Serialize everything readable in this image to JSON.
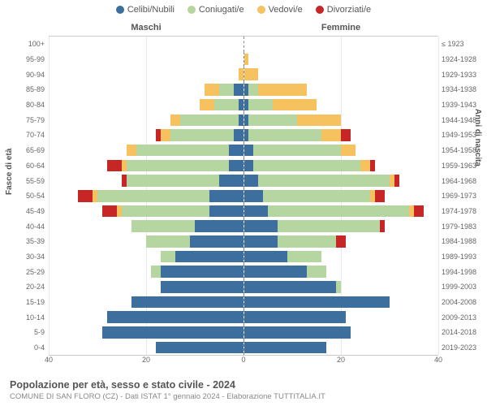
{
  "chart": {
    "type": "population-pyramid",
    "xmax": 40,
    "xticks": [
      40,
      20,
      0,
      20,
      40
    ],
    "background_color": "#ffffff",
    "grid_color": "#e8e8e8",
    "centerline_color": "#888888",
    "border_color": "#cccccc",
    "bar_height_ratio": 0.78,
    "label_fontsize": 9,
    "axis_fontsize": 10,
    "font_family": "Arial",
    "categories": [
      {
        "key": "celibi",
        "label": "Celibi/Nubili",
        "color": "#3c6e9e"
      },
      {
        "key": "coniugati",
        "label": "Coniugati/e",
        "color": "#b5d6a0"
      },
      {
        "key": "vedovi",
        "label": "Vedovi/e",
        "color": "#f6c260"
      },
      {
        "key": "divorziati",
        "label": "Divorziati/e",
        "color": "#c62626"
      }
    ],
    "headers": {
      "male": "Maschi",
      "female": "Femmine"
    },
    "y_axis_left_label": "Fasce di età",
    "y_axis_right_label": "Anni di nascita",
    "rows": [
      {
        "age": "100+",
        "year": "≤ 1923",
        "m": {
          "celibi": 0,
          "coniugati": 0,
          "vedovi": 0,
          "divorziati": 0
        },
        "f": {
          "celibi": 0,
          "coniugati": 0,
          "vedovi": 0,
          "divorziati": 0
        }
      },
      {
        "age": "95-99",
        "year": "1924-1928",
        "m": {
          "celibi": 0,
          "coniugati": 0,
          "vedovi": 0,
          "divorziati": 0
        },
        "f": {
          "celibi": 0,
          "coniugati": 0,
          "vedovi": 1,
          "divorziati": 0
        }
      },
      {
        "age": "90-94",
        "year": "1929-1933",
        "m": {
          "celibi": 0,
          "coniugati": 0,
          "vedovi": 1,
          "divorziati": 0
        },
        "f": {
          "celibi": 0,
          "coniugati": 0,
          "vedovi": 3,
          "divorziati": 0
        }
      },
      {
        "age": "85-89",
        "year": "1934-1938",
        "m": {
          "celibi": 2,
          "coniugati": 3,
          "vedovi": 3,
          "divorziati": 0
        },
        "f": {
          "celibi": 1,
          "coniugati": 2,
          "vedovi": 10,
          "divorziati": 0
        }
      },
      {
        "age": "80-84",
        "year": "1939-1943",
        "m": {
          "celibi": 1,
          "coniugati": 5,
          "vedovi": 3,
          "divorziati": 0
        },
        "f": {
          "celibi": 1,
          "coniugati": 5,
          "vedovi": 9,
          "divorziati": 0
        }
      },
      {
        "age": "75-79",
        "year": "1944-1948",
        "m": {
          "celibi": 1,
          "coniugati": 12,
          "vedovi": 2,
          "divorziati": 0
        },
        "f": {
          "celibi": 1,
          "coniugati": 10,
          "vedovi": 9,
          "divorziati": 0
        }
      },
      {
        "age": "70-74",
        "year": "1949-1953",
        "m": {
          "celibi": 2,
          "coniugati": 13,
          "vedovi": 2,
          "divorziati": 1
        },
        "f": {
          "celibi": 1,
          "coniugati": 15,
          "vedovi": 4,
          "divorziati": 2
        }
      },
      {
        "age": "65-69",
        "year": "1954-1958",
        "m": {
          "celibi": 3,
          "coniugati": 19,
          "vedovi": 2,
          "divorziati": 0
        },
        "f": {
          "celibi": 2,
          "coniugati": 18,
          "vedovi": 3,
          "divorziati": 0
        }
      },
      {
        "age": "60-64",
        "year": "1959-1963",
        "m": {
          "celibi": 3,
          "coniugati": 21,
          "vedovi": 1,
          "divorziati": 3
        },
        "f": {
          "celibi": 2,
          "coniugati": 22,
          "vedovi": 2,
          "divorziati": 1
        }
      },
      {
        "age": "55-59",
        "year": "1964-1968",
        "m": {
          "celibi": 5,
          "coniugati": 19,
          "vedovi": 0,
          "divorziati": 1
        },
        "f": {
          "celibi": 3,
          "coniugati": 27,
          "vedovi": 1,
          "divorziati": 1
        }
      },
      {
        "age": "50-54",
        "year": "1969-1973",
        "m": {
          "celibi": 7,
          "coniugati": 23,
          "vedovi": 1,
          "divorziati": 3
        },
        "f": {
          "celibi": 4,
          "coniugati": 22,
          "vedovi": 1,
          "divorziati": 2
        }
      },
      {
        "age": "45-49",
        "year": "1974-1978",
        "m": {
          "celibi": 7,
          "coniugati": 18,
          "vedovi": 1,
          "divorziati": 3
        },
        "f": {
          "celibi": 5,
          "coniugati": 29,
          "vedovi": 1,
          "divorziati": 2
        }
      },
      {
        "age": "40-44",
        "year": "1979-1983",
        "m": {
          "celibi": 10,
          "coniugati": 13,
          "vedovi": 0,
          "divorziati": 0
        },
        "f": {
          "celibi": 7,
          "coniugati": 21,
          "vedovi": 0,
          "divorziati": 1
        }
      },
      {
        "age": "35-39",
        "year": "1984-1988",
        "m": {
          "celibi": 11,
          "coniugati": 9,
          "vedovi": 0,
          "divorziati": 0
        },
        "f": {
          "celibi": 7,
          "coniugati": 12,
          "vedovi": 0,
          "divorziati": 2
        }
      },
      {
        "age": "30-34",
        "year": "1989-1993",
        "m": {
          "celibi": 14,
          "coniugati": 3,
          "vedovi": 0,
          "divorziati": 0
        },
        "f": {
          "celibi": 9,
          "coniugati": 7,
          "vedovi": 0,
          "divorziati": 0
        }
      },
      {
        "age": "25-29",
        "year": "1994-1998",
        "m": {
          "celibi": 17,
          "coniugati": 2,
          "vedovi": 0,
          "divorziati": 0
        },
        "f": {
          "celibi": 13,
          "coniugati": 4,
          "vedovi": 0,
          "divorziati": 0
        }
      },
      {
        "age": "20-24",
        "year": "1999-2003",
        "m": {
          "celibi": 17,
          "coniugati": 0,
          "vedovi": 0,
          "divorziati": 0
        },
        "f": {
          "celibi": 19,
          "coniugati": 1,
          "vedovi": 0,
          "divorziati": 0
        }
      },
      {
        "age": "15-19",
        "year": "2004-2008",
        "m": {
          "celibi": 23,
          "coniugati": 0,
          "vedovi": 0,
          "divorziati": 0
        },
        "f": {
          "celibi": 30,
          "coniugati": 0,
          "vedovi": 0,
          "divorziati": 0
        }
      },
      {
        "age": "10-14",
        "year": "2009-2013",
        "m": {
          "celibi": 28,
          "coniugati": 0,
          "vedovi": 0,
          "divorziati": 0
        },
        "f": {
          "celibi": 21,
          "coniugati": 0,
          "vedovi": 0,
          "divorziati": 0
        }
      },
      {
        "age": "5-9",
        "year": "2014-2018",
        "m": {
          "celibi": 29,
          "coniugati": 0,
          "vedovi": 0,
          "divorziati": 0
        },
        "f": {
          "celibi": 22,
          "coniugati": 0,
          "vedovi": 0,
          "divorziati": 0
        }
      },
      {
        "age": "0-4",
        "year": "2019-2023",
        "m": {
          "celibi": 18,
          "coniugati": 0,
          "vedovi": 0,
          "divorziati": 0
        },
        "f": {
          "celibi": 17,
          "coniugati": 0,
          "vedovi": 0,
          "divorziati": 0
        }
      }
    ]
  },
  "footer": {
    "title": "Popolazione per età, sesso e stato civile - 2024",
    "subtitle": "COMUNE DI SAN FLORO (CZ) - Dati ISTAT 1° gennaio 2024 - Elaborazione TUTTITALIA.IT"
  }
}
